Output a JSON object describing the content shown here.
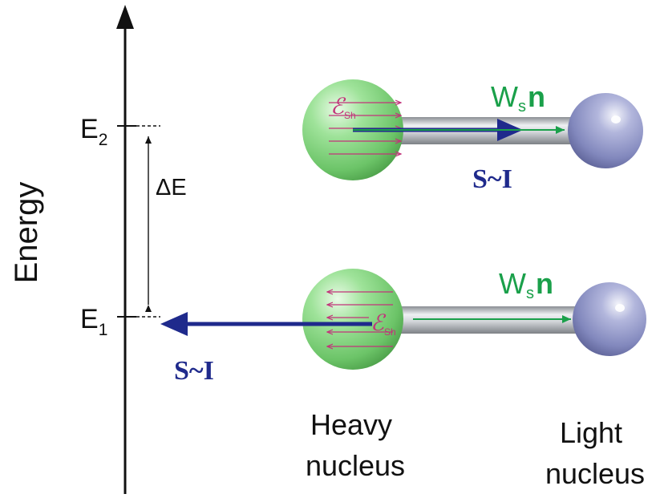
{
  "axis": {
    "label": "Energy",
    "levels": [
      {
        "base": "E",
        "sub": "2"
      },
      {
        "base": "E",
        "sub": "1"
      }
    ],
    "gap_label": "ΔE"
  },
  "upper_molecule": {
    "field_symbol": "ℰ",
    "field_sub": "Sh",
    "ws_base": "W",
    "ws_sub": "s",
    "ws_vec": "n",
    "spin_label": "S~I"
  },
  "lower_molecule": {
    "field_symbol": "ℰ",
    "field_sub": "Sh",
    "ws_base": "W",
    "ws_sub": "s",
    "ws_vec": "n",
    "spin_label": "S~I"
  },
  "labels": {
    "heavy": [
      "Heavy",
      "nucleus"
    ],
    "light": [
      "Light",
      "nucleus"
    ]
  },
  "colors": {
    "heavy_sphere": "#7fd67c",
    "light_sphere": "#8e93c4",
    "spin_arrow": "#1f2a8c",
    "ws_arrow": "#1aa04a",
    "field_arrow": "#c2337a",
    "rod": "#bfc3c8"
  }
}
